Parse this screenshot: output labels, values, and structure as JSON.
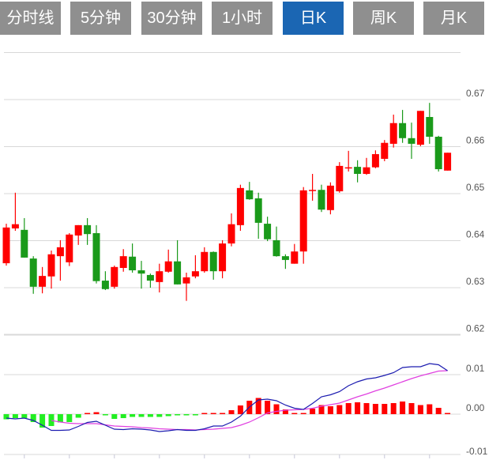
{
  "tabs": [
    {
      "label": "分时线",
      "active": false
    },
    {
      "label": "5分钟",
      "active": false
    },
    {
      "label": "30分钟",
      "active": false
    },
    {
      "label": "1小时",
      "active": false
    },
    {
      "label": "日K",
      "active": true
    },
    {
      "label": "周K",
      "active": false
    },
    {
      "label": "月K",
      "active": false
    }
  ],
  "colors": {
    "tab_bg": "#8f8f8f",
    "tab_active": "#1b66b3",
    "up": "#ff0000",
    "down": "#1a9a1a",
    "hist_down": "#22ee22",
    "dif": "#1c1cb0",
    "dea": "#e040e0",
    "grid": "#d8d8d8"
  },
  "chart_data": [
    {
      "type": "candlestick",
      "title": "",
      "ylim": [
        0.62,
        0.68
      ],
      "y_ticks": [
        "0.67",
        "0.66",
        "0.65",
        "0.64",
        "0.63",
        "0.62"
      ],
      "grid": true,
      "ohlc": [
        [
          0.6352,
          0.6428,
          0.6436,
          0.6347
        ],
        [
          0.6426,
          0.6435,
          0.6502,
          0.6421
        ],
        [
          0.6423,
          0.6364,
          0.6448,
          0.6364
        ],
        [
          0.6362,
          0.6302,
          0.6367,
          0.6287
        ],
        [
          0.6302,
          0.6325,
          0.6344,
          0.6288
        ],
        [
          0.6324,
          0.6371,
          0.6379,
          0.6298
        ],
        [
          0.6367,
          0.6386,
          0.6401,
          0.6315
        ],
        [
          0.6354,
          0.6413,
          0.6416,
          0.6346
        ],
        [
          0.6411,
          0.6433,
          0.6433,
          0.6391
        ],
        [
          0.6433,
          0.6414,
          0.6448,
          0.6391
        ],
        [
          0.6416,
          0.6314,
          0.6433,
          0.6309
        ],
        [
          0.6315,
          0.6297,
          0.6335,
          0.6295
        ],
        [
          0.6302,
          0.6344,
          0.6347,
          0.6298
        ],
        [
          0.6342,
          0.6367,
          0.6382,
          0.6334
        ],
        [
          0.6366,
          0.6337,
          0.6394,
          0.6332
        ],
        [
          0.6337,
          0.633,
          0.6357,
          0.6298
        ],
        [
          0.6327,
          0.6315,
          0.633,
          0.63
        ],
        [
          0.6312,
          0.6335,
          0.6351,
          0.629
        ],
        [
          0.6334,
          0.6356,
          0.6381,
          0.6332
        ],
        [
          0.6356,
          0.6307,
          0.6401,
          0.6307
        ],
        [
          0.6309,
          0.6322,
          0.6332,
          0.6272
        ],
        [
          0.6324,
          0.6335,
          0.6369,
          0.632
        ],
        [
          0.6335,
          0.6376,
          0.6386,
          0.6332
        ],
        [
          0.6376,
          0.6335,
          0.6377,
          0.6317
        ],
        [
          0.6335,
          0.6394,
          0.6401,
          0.632
        ],
        [
          0.6394,
          0.6435,
          0.6458,
          0.6388
        ],
        [
          0.6433,
          0.6512,
          0.6519,
          0.6421
        ],
        [
          0.6507,
          0.6488,
          0.6525,
          0.6487
        ],
        [
          0.649,
          0.6438,
          0.6502,
          0.6404
        ],
        [
          0.6436,
          0.6403,
          0.6451,
          0.6399
        ],
        [
          0.6401,
          0.6367,
          0.643,
          0.6366
        ],
        [
          0.6367,
          0.6359,
          0.6371,
          0.634
        ],
        [
          0.6351,
          0.6377,
          0.6393,
          0.6351
        ],
        [
          0.6377,
          0.6507,
          0.6514,
          0.6351
        ],
        [
          0.6507,
          0.6508,
          0.6542,
          0.6485
        ],
        [
          0.6508,
          0.6466,
          0.6519,
          0.6461
        ],
        [
          0.6465,
          0.6517,
          0.6524,
          0.6456
        ],
        [
          0.6505,
          0.6559,
          0.6567,
          0.6502
        ],
        [
          0.6554,
          0.6556,
          0.6591,
          0.6547
        ],
        [
          0.6557,
          0.6542,
          0.6571,
          0.6524
        ],
        [
          0.6542,
          0.6556,
          0.6576,
          0.654
        ],
        [
          0.6556,
          0.6584,
          0.6592,
          0.6554
        ],
        [
          0.6574,
          0.6608,
          0.6614,
          0.6569
        ],
        [
          0.6606,
          0.665,
          0.6668,
          0.6598
        ],
        [
          0.665,
          0.6618,
          0.6678,
          0.6608
        ],
        [
          0.6618,
          0.6606,
          0.6651,
          0.6574
        ],
        [
          0.6604,
          0.6676,
          0.6676,
          0.6601
        ],
        [
          0.6663,
          0.6621,
          0.6693,
          0.6606
        ],
        [
          0.6621,
          0.6552,
          0.6623,
          0.6547
        ],
        [
          0.6549,
          0.6587,
          0.6587,
          0.6549
        ]
      ]
    },
    {
      "type": "macd",
      "ylim": [
        -0.01,
        0.015
      ],
      "y_ticks": [
        "0.01",
        "0.00",
        "-0.01"
      ],
      "histogram": [
        -0.0013,
        -0.001,
        -0.001,
        -0.002,
        -0.0034,
        -0.003,
        -0.0021,
        -0.002,
        -0.0009,
        0.0002,
        0.0005,
        -0.0003,
        -0.0012,
        -0.001,
        -0.0007,
        -0.0007,
        -0.0007,
        -0.0007,
        -0.0005,
        -0.0003,
        -0.0003,
        -0.0003,
        0,
        0.0003,
        0.0003,
        0.001,
        0.0022,
        0.0034,
        0.0041,
        0.0034,
        0.0025,
        0.0012,
        0.0001,
        0,
        0.0014,
        0.0023,
        0.002,
        0.0023,
        0.0028,
        0.003,
        0.0028,
        0.0026,
        0.0026,
        0.0028,
        0.0032,
        0.0028,
        0.0023,
        0.0025,
        0.0016,
        0.0001
      ],
      "dif": [
        -0.001,
        -0.0012,
        -0.001,
        -0.0016,
        -0.0028,
        -0.0041,
        -0.0041,
        -0.004,
        -0.0031,
        -0.0021,
        -0.0018,
        -0.0028,
        -0.0038,
        -0.0039,
        -0.0037,
        -0.0038,
        -0.004,
        -0.0044,
        -0.0042,
        -0.0039,
        -0.0041,
        -0.0041,
        -0.0037,
        -0.003,
        -0.003,
        -0.002,
        -0.0005,
        0.0018,
        0.0036,
        0.0038,
        0.0034,
        0.0023,
        0.0015,
        0.0012,
        0.0027,
        0.0044,
        0.0049,
        0.0057,
        0.0072,
        0.0082,
        0.0089,
        0.0092,
        0.0098,
        0.0105,
        0.0118,
        0.012,
        0.012,
        0.0128,
        0.0125,
        0.011
      ],
      "dea": [
        null,
        null,
        null,
        null,
        null,
        -0.0016,
        -0.002,
        -0.0023,
        -0.0024,
        -0.0024,
        -0.0024,
        -0.0027,
        -0.003,
        -0.0031,
        -0.0032,
        -0.0034,
        -0.0035,
        -0.0037,
        -0.0038,
        -0.0039,
        -0.0039,
        -0.004,
        -0.0039,
        -0.0038,
        -0.0036,
        -0.0034,
        -0.0028,
        -0.002,
        -0.0009,
        0.0003,
        0.0007,
        0.001,
        0.0011,
        0.0012,
        0.0015,
        0.002,
        0.0024,
        0.0028,
        0.0036,
        0.0044,
        0.0051,
        0.0059,
        0.0066,
        0.0074,
        0.0082,
        0.009,
        0.0097,
        0.0103,
        0.0109,
        0.011
      ]
    }
  ]
}
